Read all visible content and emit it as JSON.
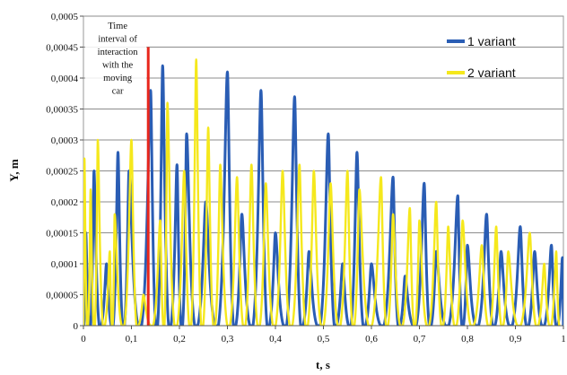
{
  "chart_data": {
    "type": "line",
    "xlabel": "t, s",
    "ylabel": "Y, m",
    "xlim": [
      0,
      1
    ],
    "ylim": [
      0,
      0.0005
    ],
    "x_ticks": [
      "0",
      "0,1",
      "0,2",
      "0,3",
      "0,4",
      "0,5",
      "0,6",
      "0,7",
      "0,8",
      "0,9",
      "1"
    ],
    "y_ticks": [
      "0",
      "0,00005",
      "0,0001",
      "0,00015",
      "0,0002",
      "0,00025",
      "0,0003",
      "0,00035",
      "0,0004",
      "0,00045",
      "0,0005"
    ],
    "grid": "horizontal",
    "legend_position": "top-right",
    "annotation": {
      "text_lines": [
        "Time",
        "interval of",
        "interaction",
        "with the",
        "moving",
        "car"
      ],
      "x": 0.135,
      "y_from": 0,
      "y_to": 0.00045,
      "color": "#e8261c"
    },
    "series": [
      {
        "name": "1 variant",
        "color": "#2a5db4",
        "peaks": [
          [
            0.005,
            0.00015
          ],
          [
            0.022,
            0.00025
          ],
          [
            0.048,
            0.0001
          ],
          [
            0.072,
            0.00028
          ],
          [
            0.095,
            0.00025
          ],
          [
            0.14,
            0.00038
          ],
          [
            0.165,
            0.00042
          ],
          [
            0.195,
            0.00026
          ],
          [
            0.215,
            0.00031
          ],
          [
            0.255,
            0.0002
          ],
          [
            0.3,
            0.00041
          ],
          [
            0.33,
            0.00018
          ],
          [
            0.37,
            0.00038
          ],
          [
            0.4,
            0.00015
          ],
          [
            0.44,
            0.00037
          ],
          [
            0.47,
            0.00012
          ],
          [
            0.51,
            0.00031
          ],
          [
            0.54,
            0.0001
          ],
          [
            0.57,
            0.00028
          ],
          [
            0.6,
            0.0001
          ],
          [
            0.645,
            0.00024
          ],
          [
            0.67,
            8e-05
          ],
          [
            0.71,
            0.00023
          ],
          [
            0.735,
            0.00012
          ],
          [
            0.78,
            0.00021
          ],
          [
            0.8,
            0.00013
          ],
          [
            0.84,
            0.00018
          ],
          [
            0.87,
            0.00012
          ],
          [
            0.91,
            0.00016
          ],
          [
            0.94,
            0.00012
          ],
          [
            0.975,
            0.00013
          ],
          [
            0.998,
            0.00011
          ]
        ]
      },
      {
        "name": "2 variant",
        "color": "#f5e81c",
        "peaks": [
          [
            0.002,
            0.00027
          ],
          [
            0.015,
            0.00022
          ],
          [
            0.03,
            0.0003
          ],
          [
            0.055,
            0.00012
          ],
          [
            0.065,
            0.00018
          ],
          [
            0.1,
            0.0003
          ],
          [
            0.125,
            5e-05
          ],
          [
            0.16,
            0.00017
          ],
          [
            0.175,
            0.00036
          ],
          [
            0.21,
            0.00025
          ],
          [
            0.235,
            0.00043
          ],
          [
            0.26,
            0.00032
          ],
          [
            0.285,
            0.00026
          ],
          [
            0.32,
            0.00024
          ],
          [
            0.35,
            0.00026
          ],
          [
            0.38,
            0.00023
          ],
          [
            0.415,
            0.00025
          ],
          [
            0.45,
            0.00026
          ],
          [
            0.48,
            0.00025
          ],
          [
            0.515,
            0.00023
          ],
          [
            0.55,
            0.00025
          ],
          [
            0.575,
            0.00022
          ],
          [
            0.62,
            0.00024
          ],
          [
            0.645,
            0.00018
          ],
          [
            0.68,
            0.00019
          ],
          [
            0.7,
            0.00017
          ],
          [
            0.735,
            0.0002
          ],
          [
            0.76,
            0.00016
          ],
          [
            0.79,
            0.00017
          ],
          [
            0.83,
            0.00013
          ],
          [
            0.86,
            0.00016
          ],
          [
            0.885,
            0.00012
          ],
          [
            0.93,
            0.00015
          ],
          [
            0.96,
            0.0001
          ],
          [
            0.985,
            0.00012
          ]
        ]
      }
    ]
  }
}
